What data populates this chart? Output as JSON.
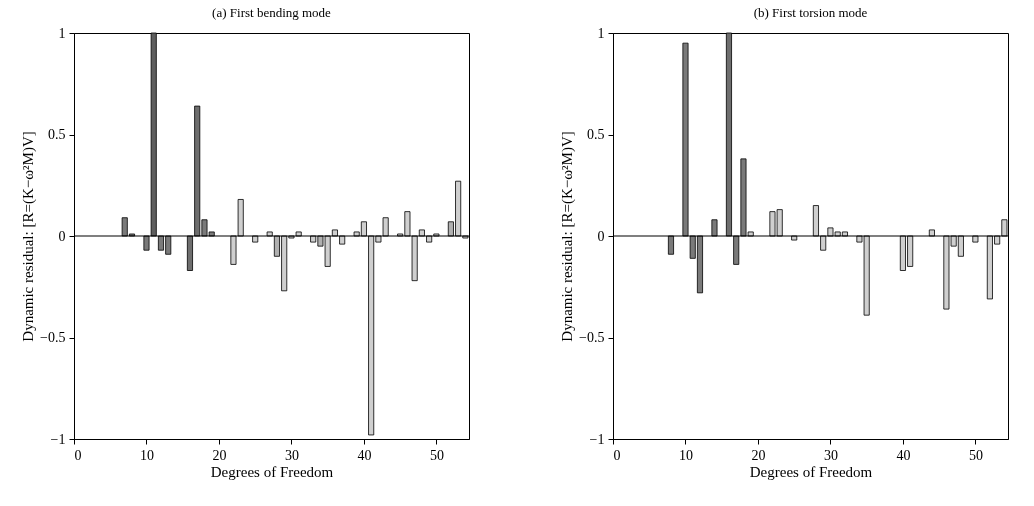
{
  "chart_data": [
    {
      "type": "bar",
      "title": "(a) First bending mode",
      "xlabel": "Degrees of Freedom",
      "ylabel": "Dynamic residual: [R=(K−ω²M)V]",
      "x": [
        7,
        8,
        10,
        11,
        12,
        13,
        16,
        17,
        18,
        19,
        22,
        23,
        25,
        27,
        28,
        29,
        30,
        31,
        33,
        34,
        35,
        36,
        37,
        39,
        40,
        41,
        42,
        43,
        45,
        46,
        47,
        48,
        49,
        50,
        52,
        53,
        54
      ],
      "values": [
        0.09,
        0.01,
        -0.07,
        1,
        -0.07,
        -0.09,
        -0.17,
        0.64,
        0.08,
        0.02,
        -0.14,
        0.18,
        -0.03,
        0.02,
        -0.1,
        -0.27,
        -0.01,
        0.02,
        -0.03,
        -0.05,
        -0.15,
        0.03,
        -0.04,
        0.02,
        0.07,
        -0.98,
        -0.03,
        0.09,
        0.01,
        0.12,
        -0.22,
        0.03,
        -0.03,
        0.01,
        0.07,
        0.27,
        -0.01
      ],
      "colors": [
        "#7a7a7a",
        "#7a7a7a",
        "#7a7a7a",
        "#5e5e5e",
        "#7a7a7a",
        "#7a7a7a",
        "#6e6e6e",
        "#6e6e6e",
        "#7a7a7a",
        "#7a7a7a",
        "#cfcfcf",
        "#cfcfcf",
        "#cfcfcf",
        "#cfcfcf",
        "#b0b0b0",
        "#cfcfcf",
        "#cfcfcf",
        "#cfcfcf",
        "#cfcfcf",
        "#b0b0b0",
        "#cfcfcf",
        "#cfcfcf",
        "#cfcfcf",
        "#cfcfcf",
        "#cfcfcf",
        "#cfcfcf",
        "#cfcfcf",
        "#cfcfcf",
        "#cfcfcf",
        "#cfcfcf",
        "#cfcfcf",
        "#cfcfcf",
        "#cfcfcf",
        "#cfcfcf",
        "#b0b0b0",
        "#cfcfcf",
        "#cfcfcf"
      ],
      "xlim": [
        0,
        54.5
      ],
      "xticks": [
        0,
        10,
        20,
        30,
        40,
        50
      ],
      "ylim": [
        -1,
        1
      ],
      "yticks": [
        -1,
        -0.5,
        0,
        0.5,
        1
      ],
      "ref_lines": [
        {
          "axis": "y",
          "value": 0
        }
      ]
    },
    {
      "type": "bar",
      "title": "(b) First torsion mode",
      "xlabel": "Degrees of Freedom",
      "ylabel": "Dynamic residual: [R=(K−ω²M)V]",
      "x": [
        8,
        10,
        11,
        12,
        14,
        16,
        17,
        18,
        19,
        22,
        23,
        25,
        28,
        29,
        30,
        31,
        32,
        34,
        35,
        40,
        41,
        44,
        46,
        47,
        48,
        50,
        52,
        53,
        54
      ],
      "values": [
        -0.09,
        0.95,
        -0.11,
        -0.28,
        0.08,
        1,
        -0.14,
        0.38,
        0.02,
        0.12,
        0.13,
        -0.02,
        0.15,
        -0.07,
        0.04,
        0.02,
        0.02,
        -0.03,
        -0.39,
        -0.17,
        -0.15,
        0.03,
        -0.36,
        -0.05,
        -0.1,
        -0.03,
        -0.31,
        -0.04,
        0.08
      ],
      "colors": [
        "#7a7a7a",
        "#7a7a7a",
        "#7a7a7a",
        "#7a7a7a",
        "#7a7a7a",
        "#6e6e6e",
        "#7a7a7a",
        "#7a7a7a",
        "#cfcfcf",
        "#cfcfcf",
        "#cfcfcf",
        "#cfcfcf",
        "#cfcfcf",
        "#cfcfcf",
        "#cfcfcf",
        "#cfcfcf",
        "#cfcfcf",
        "#cfcfcf",
        "#cfcfcf",
        "#cfcfcf",
        "#cfcfcf",
        "#cfcfcf",
        "#cfcfcf",
        "#cfcfcf",
        "#cfcfcf",
        "#cfcfcf",
        "#cfcfcf",
        "#cfcfcf",
        "#cfcfcf"
      ],
      "xlim": [
        0,
        54.5
      ],
      "xticks": [
        0,
        10,
        20,
        30,
        40,
        50
      ],
      "ylim": [
        -1,
        1
      ],
      "yticks": [
        -1,
        -0.5,
        0,
        0.5,
        1
      ],
      "ref_lines": [
        {
          "axis": "y",
          "value": 0
        }
      ]
    }
  ]
}
